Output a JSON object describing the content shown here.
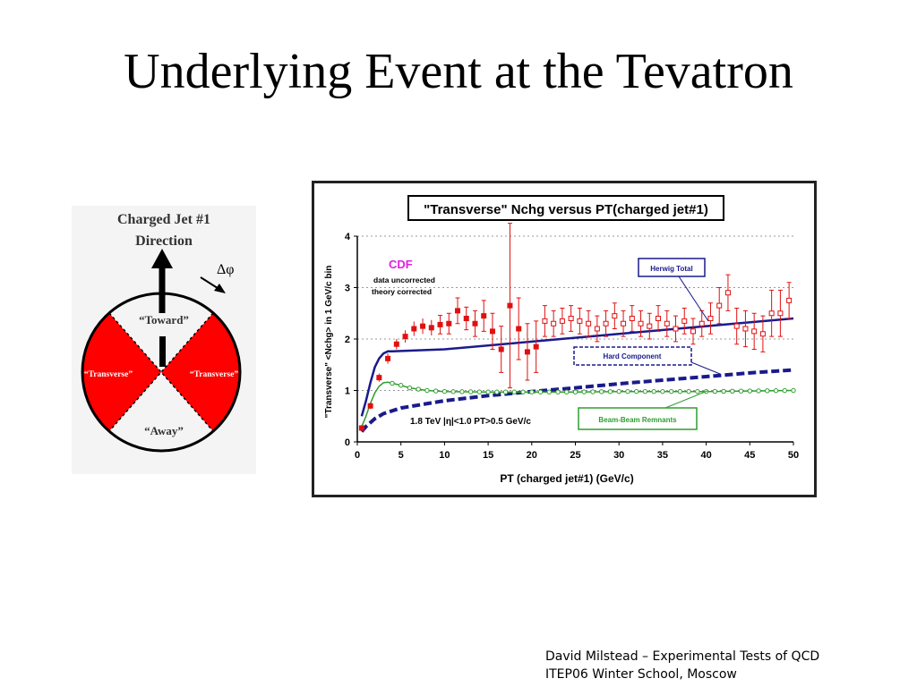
{
  "slide": {
    "title": "Underlying Event at the Tevatron"
  },
  "diagram": {
    "heading_line1": "Charged Jet #1",
    "heading_line2": "Direction",
    "delta_phi": "Δφ",
    "toward": "“Toward”",
    "transverse_left": "“Transverse”",
    "transverse_right": "“Transverse”",
    "away": "“Away”",
    "colors": {
      "transverse": "#ff0000",
      "background": "#f4f4f4"
    }
  },
  "chart_data": {
    "type": "line",
    "title": "\"Transverse\" Nchg versus PT(charged jet#1)",
    "xlabel": "PT (charged jet#1)  (GeV/c)",
    "ylabel": "\"Transverse\" <Nchg> in 1 GeV/c bin",
    "xlim": [
      0,
      50
    ],
    "ylim": [
      0,
      4
    ],
    "xticks": [
      0,
      5,
      10,
      15,
      20,
      25,
      30,
      35,
      40,
      45,
      50
    ],
    "yticks": [
      0,
      1,
      2,
      3,
      4
    ],
    "grid": "horizontal dotted",
    "annotations": {
      "cdf": "CDF",
      "uncorrected": "data uncorrected",
      "corrected": "theory corrected",
      "cuts": "1.8 TeV |η|<1.0 PT>0.5 GeV/c"
    },
    "series": [
      {
        "name": "Herwig Total",
        "style": "solid",
        "color": "#1a1a8c",
        "x": [
          0.5,
          1,
          1.5,
          2,
          2.5,
          3,
          3.5,
          4,
          10,
          20,
          30,
          40,
          50
        ],
        "y": [
          0.5,
          0.8,
          1.15,
          1.45,
          1.62,
          1.72,
          1.76,
          1.76,
          1.8,
          1.95,
          2.1,
          2.25,
          2.4
        ]
      },
      {
        "name": "Hard Component",
        "style": "dashed",
        "color": "#1a1a8c",
        "x": [
          0.5,
          1,
          2,
          3,
          5,
          10,
          15,
          20,
          25,
          30,
          35,
          40,
          45,
          50
        ],
        "y": [
          0.2,
          0.3,
          0.45,
          0.55,
          0.66,
          0.8,
          0.9,
          0.98,
          1.05,
          1.13,
          1.2,
          1.27,
          1.34,
          1.4
        ]
      },
      {
        "name": "Beam-Beam Remnants",
        "style": "solid-markers",
        "color": "#2e9e2e",
        "x": [
          0.5,
          1,
          1.5,
          2,
          2.5,
          3,
          3.5,
          4,
          5,
          6,
          8,
          10,
          15,
          20,
          25,
          30,
          35,
          40,
          45,
          50
        ],
        "y": [
          0.3,
          0.5,
          0.75,
          0.95,
          1.08,
          1.15,
          1.16,
          1.14,
          1.1,
          1.05,
          1.0,
          0.98,
          0.97,
          0.97,
          0.97,
          0.98,
          0.98,
          0.98,
          0.99,
          1.0
        ]
      }
    ],
    "data_points": {
      "name": "CDF data",
      "color": "#e01010",
      "x": [
        0.5,
        1.5,
        2.5,
        3.5,
        4.5,
        5.5,
        6.5,
        7.5,
        8.5,
        9.5,
        10.5,
        11.5,
        12.5,
        13.5,
        14.5,
        15.5,
        16.5,
        17.5,
        18.5,
        19.5,
        20.5,
        21.5,
        22.5,
        23.5,
        24.5,
        25.5,
        26.5,
        27.5,
        28.5,
        29.5,
        30.5,
        31.5,
        32.5,
        33.5,
        34.5,
        35.5,
        36.5,
        37.5,
        38.5,
        39.5,
        40.5,
        41.5,
        42.5,
        43.5,
        44.5,
        45.5,
        46.5,
        47.5,
        48.5,
        49.5
      ],
      "y": [
        0.27,
        0.7,
        1.25,
        1.62,
        1.9,
        2.05,
        2.2,
        2.25,
        2.22,
        2.28,
        2.3,
        2.55,
        2.4,
        2.3,
        2.45,
        2.15,
        1.8,
        2.65,
        2.2,
        1.75,
        1.85,
        2.35,
        2.3,
        2.35,
        2.4,
        2.35,
        2.3,
        2.2,
        2.3,
        2.45,
        2.3,
        2.4,
        2.3,
        2.25,
        2.4,
        2.3,
        2.2,
        2.35,
        2.15,
        2.3,
        2.4,
        2.65,
        2.9,
        2.25,
        2.2,
        2.15,
        2.1,
        2.5,
        2.5,
        2.75
      ],
      "err": [
        0.03,
        0.06,
        0.08,
        0.1,
        0.1,
        0.12,
        0.14,
        0.15,
        0.15,
        0.18,
        0.2,
        0.25,
        0.22,
        0.25,
        0.3,
        0.35,
        0.45,
        1.6,
        0.6,
        0.55,
        0.5,
        0.3,
        0.25,
        0.25,
        0.25,
        0.25,
        0.25,
        0.25,
        0.25,
        0.25,
        0.25,
        0.25,
        0.25,
        0.25,
        0.25,
        0.25,
        0.25,
        0.25,
        0.25,
        0.25,
        0.3,
        0.35,
        0.35,
        0.35,
        0.35,
        0.35,
        0.35,
        0.45,
        0.45,
        0.35
      ]
    }
  },
  "footer": {
    "line1": "David Milstead – Experimental Tests of QCD",
    "line2": "ITEP06 Winter School, Moscow"
  }
}
